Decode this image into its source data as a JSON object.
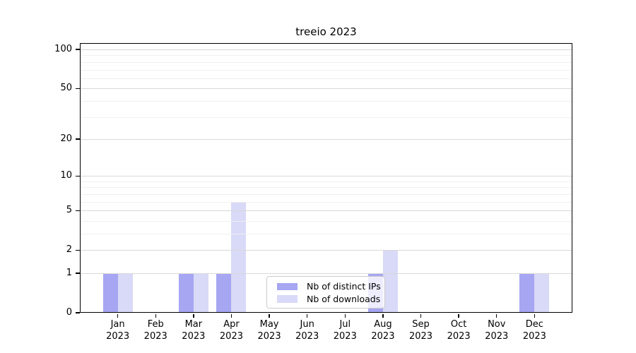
{
  "title": "treeio 2023",
  "chart_data": {
    "type": "bar",
    "title": "treeio 2023",
    "categories": [
      "Jan 2023",
      "Feb 2023",
      "Mar 2023",
      "Apr 2023",
      "May 2023",
      "Jun 2023",
      "Jul 2023",
      "Aug 2023",
      "Sep 2023",
      "Oct 2023",
      "Nov 2023",
      "Dec 2023"
    ],
    "series": [
      {
        "name": "Nb of distinct IPs",
        "color": "#a6a6f2",
        "values": [
          1,
          0,
          1,
          1,
          0,
          0,
          0,
          1,
          0,
          0,
          0,
          1
        ]
      },
      {
        "name": "Nb of downloads",
        "color": "#d9d9f8",
        "values": [
          1,
          0,
          1,
          6,
          0,
          0,
          0,
          2,
          0,
          0,
          0,
          1
        ]
      }
    ],
    "xlabel": "",
    "ylabel": "",
    "yscale": "log1p",
    "ylim": [
      0,
      112
    ],
    "yticks": [
      0,
      1,
      2,
      5,
      10,
      20,
      50,
      100
    ],
    "major_gridlines": [
      1,
      2,
      5,
      10,
      20,
      50,
      100
    ],
    "minor_gridlines": [
      3,
      4,
      6,
      7,
      8,
      9,
      30,
      40,
      60,
      70,
      80,
      90
    ],
    "grid": true,
    "legend_position": "lower center"
  },
  "colors": {
    "major_grid": "#d9d9d9",
    "minor_grid": "#f0f0f0",
    "spine": "#000000",
    "legend_border": "#cccccc",
    "background": "#ffffff"
  }
}
